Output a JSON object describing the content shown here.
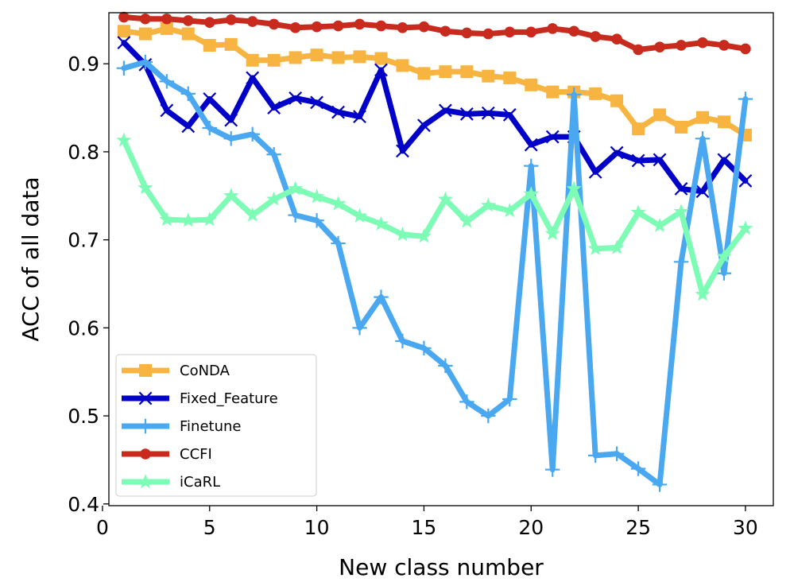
{
  "chart_data": {
    "type": "line",
    "title": "",
    "xlabel": "New class number",
    "ylabel": "ACC of all data",
    "xlim": [
      0.3,
      31.3
    ],
    "ylim": [
      0.398,
      0.958
    ],
    "x_ticks": [
      0,
      5,
      10,
      15,
      20,
      25,
      30
    ],
    "y_ticks": [
      0.4,
      0.5,
      0.6,
      0.7,
      0.8,
      0.9
    ],
    "x_tick_labels": [
      "0",
      "5",
      "10",
      "15",
      "20",
      "25",
      "30"
    ],
    "y_tick_labels": [
      "0.4",
      "0.5",
      "0.6",
      "0.7",
      "0.8",
      "0.9"
    ],
    "grid": false,
    "legend_position": "lower-left",
    "x": [
      1,
      2,
      3,
      4,
      5,
      6,
      7,
      8,
      9,
      10,
      11,
      12,
      13,
      14,
      15,
      16,
      17,
      18,
      19,
      20,
      21,
      22,
      23,
      24,
      25,
      26,
      27,
      28,
      29,
      30
    ],
    "series": [
      {
        "name": "CoNDA",
        "color": "#F7B440",
        "marker": "square",
        "values": [
          0.937,
          0.934,
          0.94,
          0.934,
          0.921,
          0.922,
          0.904,
          0.904,
          0.907,
          0.91,
          0.907,
          0.908,
          0.906,
          0.898,
          0.889,
          0.891,
          0.891,
          0.886,
          0.884,
          0.876,
          0.868,
          0.868,
          0.866,
          0.858,
          0.826,
          0.842,
          0.828,
          0.839,
          0.834,
          0.819
        ]
      },
      {
        "name": "Fixed_Feature",
        "color": "#0000C8",
        "marker": "x",
        "values": [
          0.924,
          0.899,
          0.847,
          0.829,
          0.86,
          0.836,
          0.884,
          0.85,
          0.861,
          0.856,
          0.845,
          0.84,
          0.893,
          0.801,
          0.83,
          0.847,
          0.843,
          0.844,
          0.842,
          0.808,
          0.817,
          0.817,
          0.777,
          0.799,
          0.79,
          0.791,
          0.758,
          0.755,
          0.791,
          0.767
        ]
      },
      {
        "name": "Finetune",
        "color": "#4AA8F0",
        "marker": "plus",
        "values": [
          0.895,
          0.902,
          0.88,
          0.866,
          0.827,
          0.815,
          0.82,
          0.797,
          0.728,
          0.722,
          0.696,
          0.6,
          0.635,
          0.585,
          0.577,
          0.557,
          0.516,
          0.5,
          0.519,
          0.784,
          0.439,
          0.865,
          0.455,
          0.457,
          0.44,
          0.422,
          0.675,
          0.815,
          0.662,
          0.86
        ]
      },
      {
        "name": "CCFI",
        "color": "#C82A1E",
        "marker": "circle",
        "values": [
          0.953,
          0.951,
          0.951,
          0.949,
          0.947,
          0.95,
          0.948,
          0.945,
          0.941,
          0.942,
          0.943,
          0.945,
          0.943,
          0.941,
          0.942,
          0.937,
          0.935,
          0.934,
          0.936,
          0.936,
          0.94,
          0.937,
          0.931,
          0.928,
          0.916,
          0.919,
          0.921,
          0.924,
          0.921,
          0.917
        ]
      },
      {
        "name": "iCaRL",
        "color": "#7CFCB4",
        "marker": "star",
        "values": [
          0.813,
          0.759,
          0.723,
          0.722,
          0.723,
          0.75,
          0.728,
          0.746,
          0.758,
          0.749,
          0.741,
          0.727,
          0.718,
          0.706,
          0.704,
          0.746,
          0.721,
          0.739,
          0.733,
          0.752,
          0.707,
          0.758,
          0.69,
          0.691,
          0.731,
          0.716,
          0.732,
          0.638,
          0.681,
          0.713
        ]
      }
    ]
  }
}
